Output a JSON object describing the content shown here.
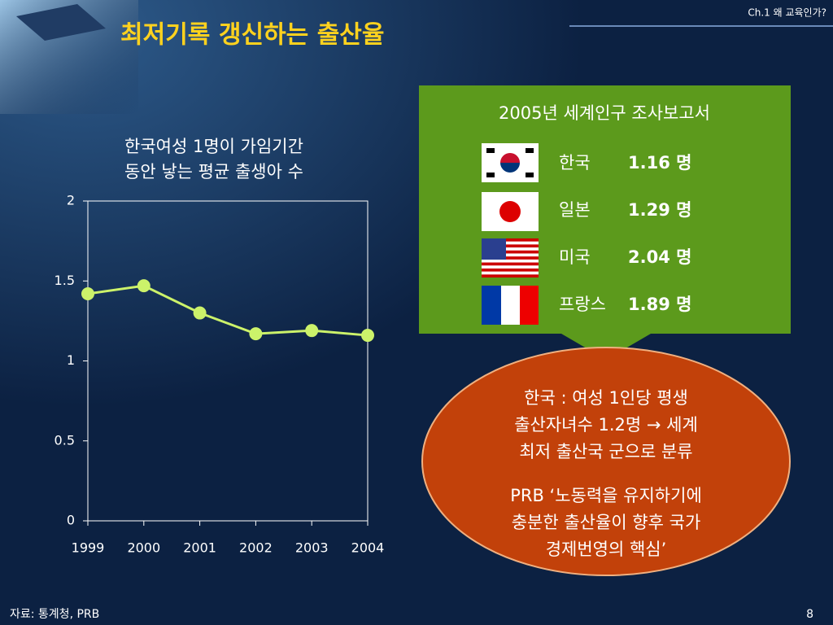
{
  "header": "Ch.1 왜 교육인가?",
  "title": "최저기록 갱신하는 출산율",
  "chart_data": {
    "type": "line",
    "title_lines": [
      "한국여성 1명이 가임기간",
      "동안 낳는 평균 출생아 수"
    ],
    "categories": [
      "1999",
      "2000",
      "2001",
      "2002",
      "2003",
      "2004"
    ],
    "values": [
      1.42,
      1.47,
      1.3,
      1.17,
      1.19,
      1.16
    ],
    "color": "#ccf26a",
    "ylim": [
      0,
      2
    ],
    "yticks": [
      0,
      0.5,
      1,
      1.5,
      2
    ]
  },
  "report": {
    "title": "2005년 세계인구 조사보고서",
    "rows": [
      {
        "country": "한국",
        "value": "1.16 명"
      },
      {
        "country": "일본",
        "value": "1.29 명"
      },
      {
        "country": "미국",
        "value": "2.04 명"
      },
      {
        "country": "프랑스",
        "value": "1.89 명"
      }
    ]
  },
  "callout": {
    "paragraph1": [
      "한국 : 여성 1인당 평생",
      "출산자녀수 1.2명 → 세계",
      "최저 출산국 군으로 분류"
    ],
    "paragraph2": [
      "PRB ‘노동력을 유지하기에",
      "충분한 출산율이 향후 국가",
      "경제번영의 핵심’"
    ]
  },
  "source": "자료: 통계청, PRB",
  "page": "8"
}
